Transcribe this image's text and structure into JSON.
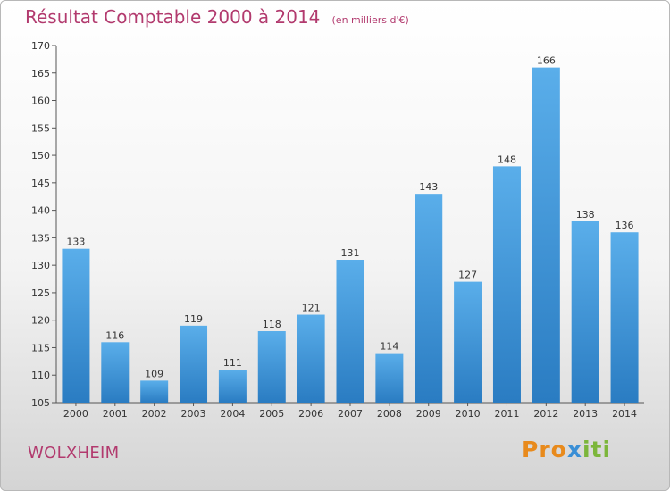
{
  "title": {
    "main": "Résultat Comptable 2000 à 2014",
    "sub": "(en milliers d'€)"
  },
  "commune": "WOLXHEIM",
  "logo": {
    "part1": "Pro",
    "part2": "x",
    "part3": "iti"
  },
  "colors": {
    "title": "#b23a6e",
    "bar_top": "#5aaeea",
    "bar_bottom": "#2a7cc2"
  },
  "chart_data": {
    "type": "bar",
    "title": "Résultat Comptable 2000 à 2014",
    "categories": [
      "2000",
      "2001",
      "2002",
      "2003",
      "2004",
      "2005",
      "2006",
      "2007",
      "2008",
      "2009",
      "2010",
      "2011",
      "2012",
      "2013",
      "2014"
    ],
    "values": [
      133,
      116,
      109,
      119,
      111,
      118,
      121,
      131,
      114,
      143,
      127,
      148,
      166,
      138,
      136
    ],
    "ylim": [
      105,
      170
    ],
    "yticks": [
      105,
      110,
      115,
      120,
      125,
      130,
      135,
      140,
      145,
      150,
      155,
      160,
      165,
      170
    ],
    "grid": false,
    "legend": "none"
  }
}
